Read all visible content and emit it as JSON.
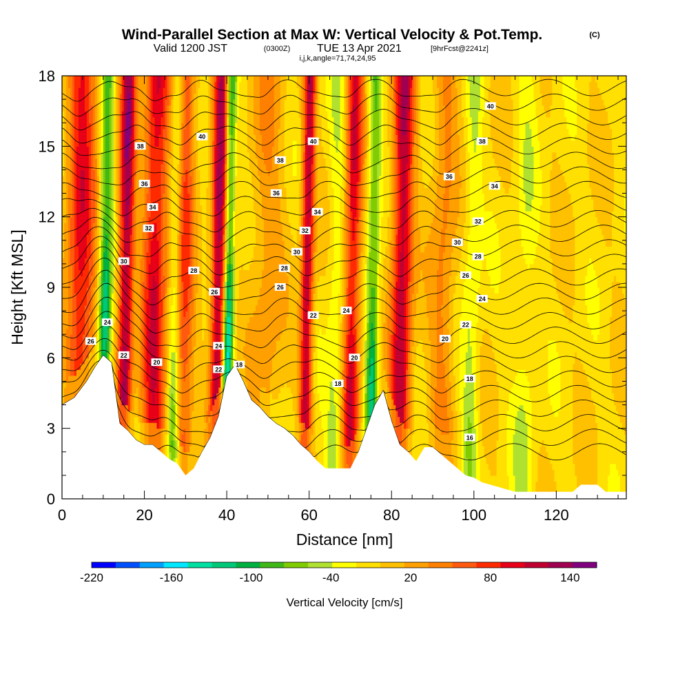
{
  "header": {
    "title": "Wind-Parallel Section at Max W: Vertical Velocity & Pot.Temp.",
    "copyright": "(C)",
    "valid_prefix": "Valid 1200 JST",
    "valid_utc": "(0300Z)",
    "valid_date": "TUE 13 Apr 2021",
    "forecast": "[9hrFcst@2241z]",
    "indices": "i,j,k,angle=71,74,24,95"
  },
  "chart_data": {
    "type": "heatmap",
    "xlabel": "Distance [nm]",
    "ylabel": "Height [Kft MSL]",
    "xlim": [
      0,
      137
    ],
    "ylim": [
      0,
      18
    ],
    "x_ticks": [
      0,
      20,
      40,
      60,
      80,
      100,
      120
    ],
    "x_tick_labels": [
      "0",
      "20",
      "40",
      "60",
      "80",
      "100",
      "120"
    ],
    "y_ticks": [
      0,
      3,
      6,
      9,
      12,
      15,
      18
    ],
    "y_tick_labels": [
      "0",
      "3",
      "6",
      "9",
      "12",
      "15",
      "18"
    ],
    "grid": false,
    "colorbar": {
      "title": "Vertical Velocity [cm/s]",
      "min": -220,
      "max": 160,
      "step": 20,
      "tick_values": [
        -220,
        -160,
        -100,
        -40,
        20,
        80,
        140
      ],
      "tick_labels": [
        "-220",
        "-160",
        "-100",
        "-40",
        "20",
        "80",
        "140"
      ],
      "colors": [
        "#0000ff",
        "#0050ff",
        "#00a0ff",
        "#00e8ff",
        "#00e0a0",
        "#00c878",
        "#00b040",
        "#40b818",
        "#80cc00",
        "#b0e030",
        "#ffff00",
        "#ffe000",
        "#ffc000",
        "#ffa000",
        "#ff8000",
        "#ff5a10",
        "#ff2a00",
        "#e80018",
        "#c00030",
        "#a00050",
        "#800080"
      ]
    },
    "terrain_height": [
      {
        "x": 0,
        "y": 4.0
      },
      {
        "x": 3,
        "y": 4.3
      },
      {
        "x": 6,
        "y": 5.0
      },
      {
        "x": 8,
        "y": 5.6
      },
      {
        "x": 10,
        "y": 6.1
      },
      {
        "x": 12,
        "y": 5.8
      },
      {
        "x": 13,
        "y": 4.5
      },
      {
        "x": 14,
        "y": 3.2
      },
      {
        "x": 16,
        "y": 2.9
      },
      {
        "x": 18,
        "y": 2.5
      },
      {
        "x": 20,
        "y": 2.3
      },
      {
        "x": 22,
        "y": 2.3
      },
      {
        "x": 24,
        "y": 2.0
      },
      {
        "x": 26,
        "y": 1.7
      },
      {
        "x": 28,
        "y": 1.5
      },
      {
        "x": 30,
        "y": 1.0
      },
      {
        "x": 32,
        "y": 1.3
      },
      {
        "x": 34,
        "y": 2.0
      },
      {
        "x": 36,
        "y": 2.6
      },
      {
        "x": 38,
        "y": 3.5
      },
      {
        "x": 40,
        "y": 5.2
      },
      {
        "x": 42,
        "y": 5.7
      },
      {
        "x": 44,
        "y": 5.0
      },
      {
        "x": 46,
        "y": 4.2
      },
      {
        "x": 48,
        "y": 3.9
      },
      {
        "x": 50,
        "y": 3.5
      },
      {
        "x": 52,
        "y": 3.2
      },
      {
        "x": 54,
        "y": 3.0
      },
      {
        "x": 56,
        "y": 2.7
      },
      {
        "x": 58,
        "y": 2.3
      },
      {
        "x": 60,
        "y": 2.0
      },
      {
        "x": 62,
        "y": 1.6
      },
      {
        "x": 64,
        "y": 1.3
      },
      {
        "x": 66,
        "y": 1.3
      },
      {
        "x": 68,
        "y": 1.3
      },
      {
        "x": 70,
        "y": 1.3
      },
      {
        "x": 72,
        "y": 2.0
      },
      {
        "x": 74,
        "y": 3.0
      },
      {
        "x": 76,
        "y": 4.0
      },
      {
        "x": 78,
        "y": 4.6
      },
      {
        "x": 80,
        "y": 3.3
      },
      {
        "x": 82,
        "y": 2.3
      },
      {
        "x": 84,
        "y": 2.0
      },
      {
        "x": 86,
        "y": 1.6
      },
      {
        "x": 88,
        "y": 2.2
      },
      {
        "x": 90,
        "y": 2.2
      },
      {
        "x": 92,
        "y": 1.9
      },
      {
        "x": 94,
        "y": 1.6
      },
      {
        "x": 96,
        "y": 1.3
      },
      {
        "x": 98,
        "y": 1.0
      },
      {
        "x": 100,
        "y": 0.9
      },
      {
        "x": 102,
        "y": 0.7
      },
      {
        "x": 104,
        "y": 0.6
      },
      {
        "x": 106,
        "y": 0.5
      },
      {
        "x": 108,
        "y": 0.4
      },
      {
        "x": 110,
        "y": 0.3
      },
      {
        "x": 115,
        "y": 0.3
      },
      {
        "x": 120,
        "y": 0.3
      },
      {
        "x": 124,
        "y": 0.3
      },
      {
        "x": 126,
        "y": 0.6
      },
      {
        "x": 130,
        "y": 0.6
      },
      {
        "x": 132,
        "y": 0.3
      },
      {
        "x": 137,
        "y": 0.3
      }
    ],
    "updrafts": [
      {
        "x": 4,
        "w": 110,
        "width": 3.5
      },
      {
        "x": 15,
        "w": 150,
        "width": 1.8
      },
      {
        "x": 22,
        "w": 120,
        "width": 3.0
      },
      {
        "x": 29,
        "w": 90,
        "width": 2.5
      },
      {
        "x": 37.5,
        "w": 150,
        "width": 1.8
      },
      {
        "x": 49,
        "w": 40,
        "width": 4.0
      },
      {
        "x": 59,
        "w": 140,
        "width": 1.5
      },
      {
        "x": 70,
        "w": 120,
        "width": 2.0
      },
      {
        "x": 82,
        "w": 140,
        "width": 2.5
      },
      {
        "x": 92,
        "w": 50,
        "width": 3.0
      }
    ],
    "downdrafts": [
      {
        "x": 10,
        "w": -150,
        "width": 1.5
      },
      {
        "x": 27,
        "w": -110,
        "width": 1.5
      },
      {
        "x": 40,
        "w": -170,
        "width": 1.2
      },
      {
        "x": 66,
        "w": -50,
        "width": 2.0
      },
      {
        "x": 75,
        "w": -130,
        "width": 1.5
      },
      {
        "x": 99,
        "w": -60,
        "width": 2.0
      },
      {
        "x": 112,
        "w": -40,
        "width": 2.5
      }
    ],
    "theta_contours": {
      "units": "degC",
      "min": 16,
      "max": 41,
      "step": 1,
      "labels": [
        {
          "x": 7,
          "y": 6.7,
          "value": "26"
        },
        {
          "x": 11,
          "y": 7.5,
          "value": "24"
        },
        {
          "x": 15,
          "y": 6.1,
          "value": "22"
        },
        {
          "x": 23,
          "y": 5.8,
          "value": "20"
        },
        {
          "x": 15,
          "y": 10.1,
          "value": "30"
        },
        {
          "x": 21,
          "y": 11.5,
          "value": "32"
        },
        {
          "x": 22,
          "y": 12.4,
          "value": "34"
        },
        {
          "x": 20,
          "y": 13.4,
          "value": "36"
        },
        {
          "x": 19,
          "y": 15.0,
          "value": "38"
        },
        {
          "x": 34,
          "y": 15.4,
          "value": "40"
        },
        {
          "x": 32,
          "y": 9.7,
          "value": "28"
        },
        {
          "x": 37,
          "y": 8.8,
          "value": "26"
        },
        {
          "x": 38,
          "y": 6.5,
          "value": "24"
        },
        {
          "x": 38,
          "y": 5.5,
          "value": "22"
        },
        {
          "x": 43,
          "y": 5.7,
          "value": "18"
        },
        {
          "x": 53,
          "y": 14.4,
          "value": "38"
        },
        {
          "x": 52,
          "y": 13.0,
          "value": "36"
        },
        {
          "x": 61,
          "y": 15.2,
          "value": "40"
        },
        {
          "x": 62,
          "y": 12.2,
          "value": "34"
        },
        {
          "x": 59,
          "y": 11.4,
          "value": "32"
        },
        {
          "x": 57,
          "y": 10.5,
          "value": "30"
        },
        {
          "x": 54,
          "y": 9.8,
          "value": "28"
        },
        {
          "x": 53,
          "y": 9.0,
          "value": "26"
        },
        {
          "x": 61,
          "y": 7.8,
          "value": "22"
        },
        {
          "x": 69,
          "y": 8.0,
          "value": "24"
        },
        {
          "x": 71,
          "y": 6.0,
          "value": "20"
        },
        {
          "x": 67,
          "y": 4.9,
          "value": "18"
        },
        {
          "x": 104,
          "y": 16.7,
          "value": "40"
        },
        {
          "x": 102,
          "y": 15.2,
          "value": "38"
        },
        {
          "x": 94,
          "y": 13.7,
          "value": "36"
        },
        {
          "x": 105,
          "y": 13.3,
          "value": "34"
        },
        {
          "x": 101,
          "y": 11.8,
          "value": "32"
        },
        {
          "x": 96,
          "y": 10.9,
          "value": "30"
        },
        {
          "x": 101,
          "y": 10.3,
          "value": "28"
        },
        {
          "x": 98,
          "y": 9.5,
          "value": "26"
        },
        {
          "x": 102,
          "y": 8.5,
          "value": "24"
        },
        {
          "x": 98,
          "y": 7.4,
          "value": "22"
        },
        {
          "x": 93,
          "y": 6.8,
          "value": "20"
        },
        {
          "x": 99,
          "y": 5.1,
          "value": "18"
        },
        {
          "x": 99,
          "y": 2.6,
          "value": "16"
        }
      ]
    }
  }
}
